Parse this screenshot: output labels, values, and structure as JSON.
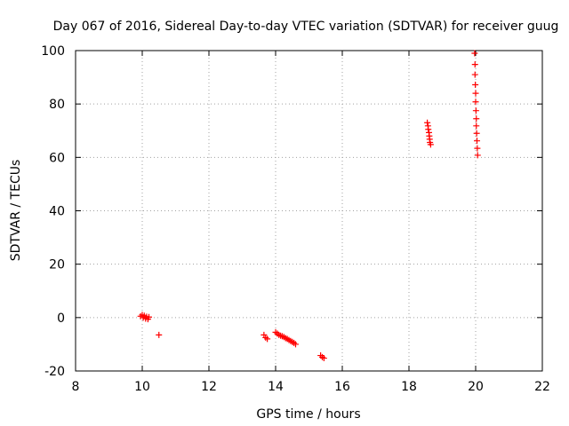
{
  "chart_data": {
    "type": "scatter",
    "title": "Day 067 of 2016, Sidereal Day-to-day VTEC variation (SDTVAR) for receiver guug",
    "xlabel": "GPS time / hours",
    "ylabel": "SDTVAR / TECUs",
    "xlim": [
      8,
      22
    ],
    "ylim": [
      -20,
      100
    ],
    "xticks": [
      "8",
      "10",
      "12",
      "14",
      "16",
      "18",
      "20",
      "22"
    ],
    "yticks": [
      "-20",
      "0",
      "20",
      "40",
      "60",
      "80",
      "100"
    ],
    "grid": true,
    "legend": "none",
    "marker": "+",
    "color": "#ff0000",
    "series": [
      {
        "name": "SDTVAR",
        "points": [
          [
            9.95,
            0.5
          ],
          [
            10.0,
            1.0
          ],
          [
            10.03,
            0.0
          ],
          [
            10.06,
            0.7
          ],
          [
            10.1,
            -0.4
          ],
          [
            10.13,
            0.3
          ],
          [
            10.17,
            -0.6
          ],
          [
            10.2,
            0.2
          ],
          [
            10.5,
            -6.5
          ],
          [
            13.65,
            -6.5
          ],
          [
            13.7,
            -7.5
          ],
          [
            13.75,
            -8.0
          ],
          [
            14.0,
            -5.5
          ],
          [
            14.05,
            -6.0
          ],
          [
            14.1,
            -6.5
          ],
          [
            14.15,
            -6.8
          ],
          [
            14.2,
            -7.0
          ],
          [
            14.25,
            -7.3
          ],
          [
            14.3,
            -7.7
          ],
          [
            14.35,
            -8.0
          ],
          [
            14.4,
            -8.4
          ],
          [
            14.45,
            -8.8
          ],
          [
            14.5,
            -9.1
          ],
          [
            14.55,
            -9.5
          ],
          [
            14.6,
            -10.0
          ],
          [
            15.35,
            -14.2
          ],
          [
            15.4,
            -14.8
          ],
          [
            15.45,
            -15.2
          ],
          [
            18.55,
            73.0
          ],
          [
            18.57,
            71.8
          ],
          [
            18.58,
            70.5
          ],
          [
            18.6,
            69.3
          ],
          [
            18.61,
            68.0
          ],
          [
            18.62,
            66.8
          ],
          [
            18.63,
            65.6
          ],
          [
            18.65,
            64.8
          ],
          [
            19.97,
            99.0
          ],
          [
            19.98,
            94.8
          ],
          [
            19.98,
            91.0
          ],
          [
            19.99,
            87.2
          ],
          [
            20.0,
            84.0
          ],
          [
            20.0,
            80.8
          ],
          [
            20.01,
            77.5
          ],
          [
            20.02,
            74.5
          ],
          [
            20.02,
            71.8
          ],
          [
            20.03,
            69.0
          ],
          [
            20.04,
            66.2
          ],
          [
            20.05,
            63.4
          ],
          [
            20.06,
            60.8
          ]
        ]
      }
    ]
  }
}
